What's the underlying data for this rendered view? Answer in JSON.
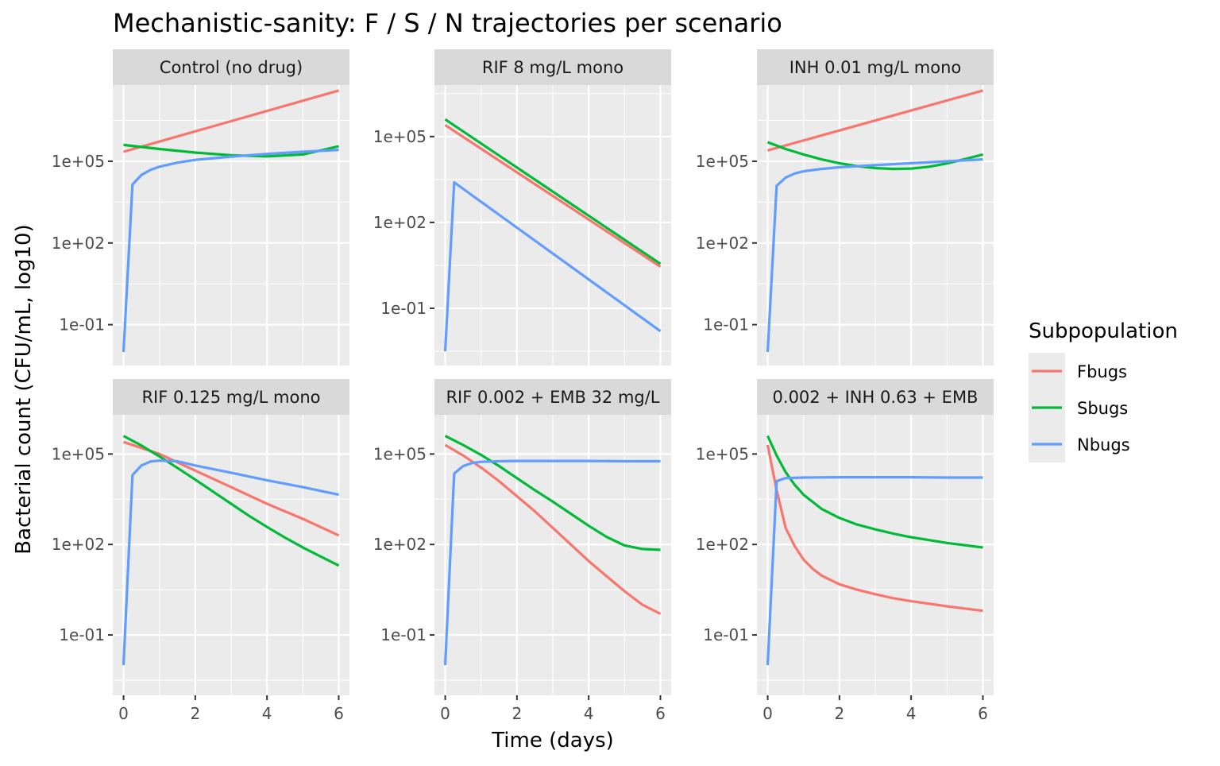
{
  "chart_data": {
    "type": "line",
    "title": "Mechanistic-sanity: F / S / N trajectories per scenario",
    "xlabel": "Time (days)",
    "ylabel": "Bacterial count (CFU/mL, log10)",
    "y_scale": "log10",
    "xlim": [
      -0.3,
      6.3
    ],
    "x_ticks": [
      0,
      2,
      4,
      6
    ],
    "y_tick_labels": [
      "1e-01",
      "1e+02",
      "1e+05"
    ],
    "y_ticks_log10": [
      -1,
      2,
      5
    ],
    "grid": true,
    "legend": {
      "title": "Subpopulation",
      "position": "right",
      "entries": [
        "Fbugs",
        "Sbugs",
        "Nbugs"
      ]
    },
    "colors": {
      "Fbugs": "#F8766D",
      "Sbugs": "#00BA38",
      "Nbugs": "#619CFF"
    },
    "panels": [
      {
        "strip": "Control (no drug)",
        "ylim_log10": [
          -2.5,
          7.8
        ],
        "series": [
          {
            "name": "Fbugs",
            "x": [
              0,
              6
            ],
            "log10_y": [
              5.35,
              7.6
            ]
          },
          {
            "name": "Sbugs",
            "x": [
              0,
              1,
              2,
              3,
              4,
              5,
              6
            ],
            "log10_y": [
              5.6,
              5.45,
              5.32,
              5.22,
              5.18,
              5.25,
              5.55
            ]
          },
          {
            "name": "Nbugs",
            "x": [
              0,
              0.25,
              0.5,
              0.75,
              1,
              1.5,
              2,
              3,
              4,
              5,
              6
            ],
            "log10_y": [
              -2.0,
              4.15,
              4.5,
              4.68,
              4.8,
              4.95,
              5.05,
              5.17,
              5.27,
              5.35,
              5.42
            ]
          }
        ]
      },
      {
        "strip": "RIF 8 mg/L mono",
        "ylim_log10": [
          -3.0,
          6.8
        ],
        "series": [
          {
            "name": "Fbugs",
            "x": [
              0,
              6
            ],
            "log10_y": [
              5.4,
              0.45
            ]
          },
          {
            "name": "Sbugs",
            "x": [
              0,
              6
            ],
            "log10_y": [
              5.6,
              0.55
            ]
          },
          {
            "name": "Nbugs",
            "x": [
              0,
              0.25,
              6
            ],
            "log10_y": [
              -2.5,
              3.4,
              -1.8
            ]
          }
        ]
      },
      {
        "strip": "INH 0.01 mg/L mono",
        "ylim_log10": [
          -2.5,
          7.8
        ],
        "series": [
          {
            "name": "Fbugs",
            "x": [
              0,
              6
            ],
            "log10_y": [
              5.4,
              7.6
            ]
          },
          {
            "name": "Sbugs",
            "x": [
              0,
              0.5,
              1,
              1.5,
              2,
              2.5,
              3,
              3.5,
              4,
              4.5,
              5,
              5.5,
              6
            ],
            "log10_y": [
              5.7,
              5.45,
              5.25,
              5.07,
              4.93,
              4.82,
              4.75,
              4.72,
              4.73,
              4.8,
              4.92,
              5.08,
              5.25
            ]
          },
          {
            "name": "Nbugs",
            "x": [
              0,
              0.25,
              0.5,
              0.75,
              1,
              1.5,
              2,
              3,
              4,
              5,
              6
            ],
            "log10_y": [
              -2.0,
              4.1,
              4.4,
              4.55,
              4.63,
              4.72,
              4.78,
              4.86,
              4.93,
              5.0,
              5.07
            ]
          }
        ]
      },
      {
        "strip": "RIF 0.125 mg/L mono",
        "ylim_log10": [
          -3.0,
          6.3
        ],
        "series": [
          {
            "name": "Fbugs",
            "x": [
              0,
              1,
              2,
              3,
              4,
              5,
              6
            ],
            "log10_y": [
              5.4,
              5.0,
              4.45,
              3.9,
              3.35,
              2.85,
              2.3
            ]
          },
          {
            "name": "Sbugs",
            "x": [
              0,
              0.5,
              1,
              1.5,
              2,
              2.5,
              3,
              3.5,
              4,
              4.5,
              5,
              5.5,
              6
            ],
            "log10_y": [
              5.6,
              5.28,
              4.92,
              4.54,
              4.15,
              3.75,
              3.35,
              2.95,
              2.58,
              2.23,
              1.9,
              1.6,
              1.3
            ]
          },
          {
            "name": "Nbugs",
            "x": [
              0,
              0.25,
              0.5,
              0.75,
              1,
              1.5,
              2,
              3,
              4,
              5,
              6
            ],
            "log10_y": [
              -2.0,
              4.3,
              4.62,
              4.75,
              4.78,
              4.76,
              4.62,
              4.38,
              4.13,
              3.9,
              3.65
            ]
          }
        ]
      },
      {
        "strip": "RIF 0.002 + EMB 32 mg/L",
        "ylim_log10": [
          -3.0,
          6.3
        ],
        "series": [
          {
            "name": "Fbugs",
            "x": [
              0,
              0.5,
              1,
              1.5,
              2,
              2.5,
              3,
              3.5,
              4,
              4.5,
              5,
              5.5,
              6
            ],
            "log10_y": [
              5.3,
              4.95,
              4.55,
              4.1,
              3.6,
              3.1,
              2.55,
              2.0,
              1.45,
              0.95,
              0.45,
              0.0,
              -0.3
            ]
          },
          {
            "name": "Sbugs",
            "x": [
              0,
              0.5,
              1,
              1.5,
              2,
              2.5,
              3,
              3.5,
              4,
              4.5,
              5,
              5.5,
              6
            ],
            "log10_y": [
              5.6,
              5.3,
              4.97,
              4.6,
              4.2,
              3.8,
              3.42,
              3.02,
              2.62,
              2.25,
              1.97,
              1.85,
              1.82
            ]
          },
          {
            "name": "Nbugs",
            "x": [
              0,
              0.25,
              0.5,
              0.75,
              1,
              1.5,
              2,
              3,
              4,
              5,
              6
            ],
            "log10_y": [
              -2.0,
              4.35,
              4.6,
              4.7,
              4.74,
              4.76,
              4.77,
              4.77,
              4.77,
              4.76,
              4.76
            ]
          }
        ]
      },
      {
        "strip": "0.002 + INH 0.63 + EMB",
        "ylim_log10": [
          -3.0,
          6.3
        ],
        "series": [
          {
            "name": "Fbugs",
            "x": [
              0,
              0.25,
              0.5,
              0.75,
              1,
              1.25,
              1.5,
              2,
              2.5,
              3,
              3.5,
              4,
              5,
              6
            ],
            "log10_y": [
              5.3,
              3.8,
              2.55,
              1.95,
              1.5,
              1.2,
              0.97,
              0.68,
              0.5,
              0.35,
              0.22,
              0.12,
              -0.05,
              -0.2
            ]
          },
          {
            "name": "Sbugs",
            "x": [
              0,
              0.25,
              0.5,
              0.75,
              1,
              1.5,
              2,
              2.5,
              3,
              3.5,
              4,
              5,
              6
            ],
            "log10_y": [
              5.6,
              4.95,
              4.4,
              3.98,
              3.65,
              3.18,
              2.88,
              2.66,
              2.5,
              2.36,
              2.24,
              2.05,
              1.9
            ]
          },
          {
            "name": "Nbugs",
            "x": [
              0,
              0.25,
              0.5,
              1,
              2,
              3,
              4,
              5,
              6
            ],
            "log10_y": [
              -2.0,
              4.1,
              4.2,
              4.22,
              4.23,
              4.23,
              4.23,
              4.22,
              4.22
            ]
          }
        ]
      }
    ]
  }
}
